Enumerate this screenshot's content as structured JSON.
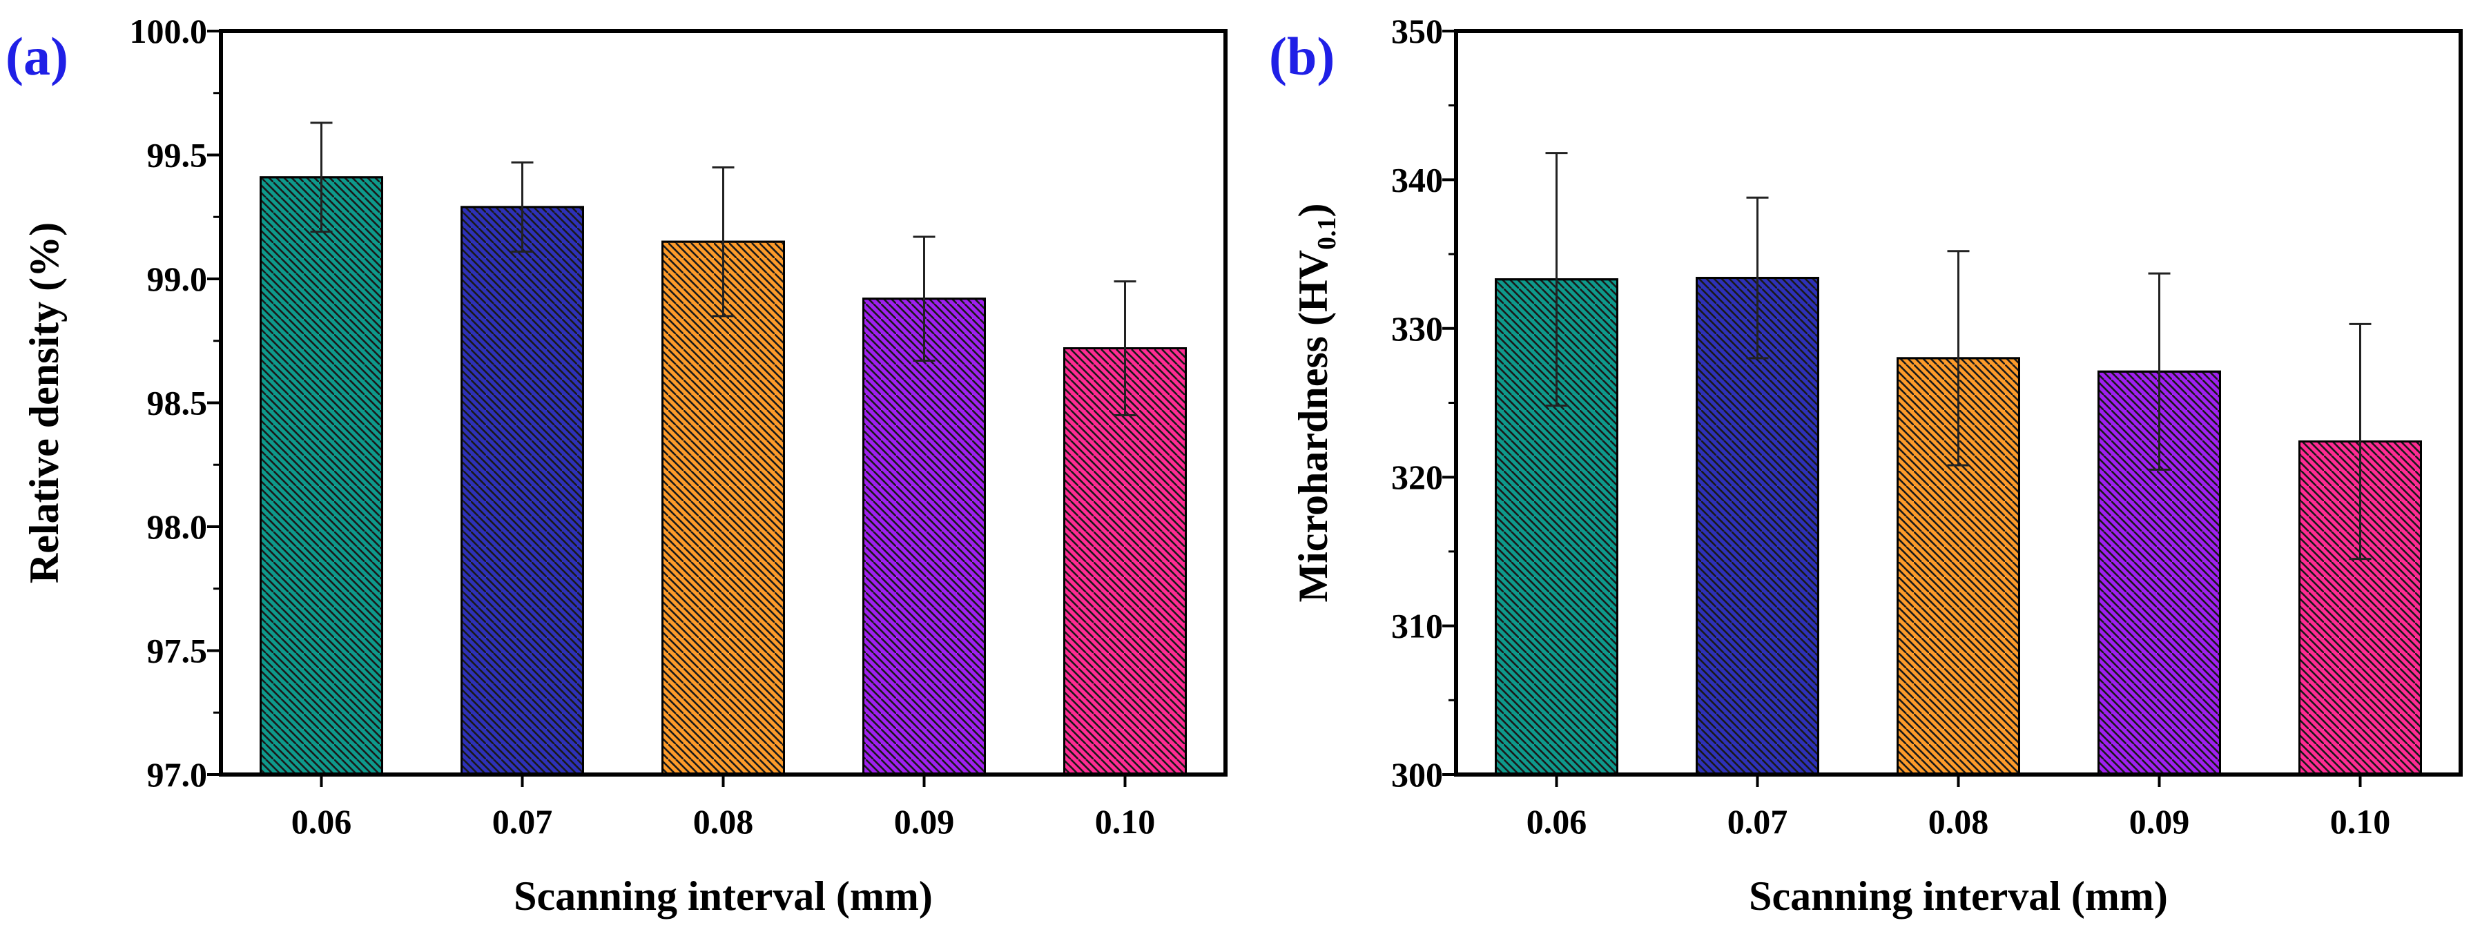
{
  "figure": {
    "panels": [
      "(a)",
      "(b)"
    ],
    "panel_label_color": "#1f1fe6"
  },
  "chart_data": [
    {
      "type": "bar",
      "panel_label": "(a)",
      "title": "",
      "xlabel": "Scanning interval (mm)",
      "ylabel": "Relative density (%)",
      "categories": [
        "0.06",
        "0.07",
        "0.08",
        "0.09",
        "0.10"
      ],
      "values": [
        99.41,
        99.29,
        99.15,
        98.92,
        98.72
      ],
      "errors": [
        0.22,
        0.18,
        0.3,
        0.25,
        0.27
      ],
      "colors": [
        "#0e9a8c",
        "#2e31b8",
        "#fd9b2a",
        "#a020f0",
        "#ff2b93"
      ],
      "hatch": "diagonal",
      "ylim": [
        97.0,
        100.0
      ],
      "yticks": [
        97.0,
        97.5,
        98.0,
        98.5,
        99.0,
        99.5,
        100.0
      ],
      "ytick_labels": [
        "97.0",
        "97.5",
        "98.0",
        "98.5",
        "99.0",
        "99.5",
        "100.0"
      ],
      "grid": false
    },
    {
      "type": "bar",
      "panel_label": "(b)",
      "title": "",
      "xlabel": "Scanning interval (mm)",
      "ylabel": "Microhardness (HV",
      "ylabel_subscript": "0.1",
      "ylabel_suffix": ")",
      "categories": [
        "0.06",
        "0.07",
        "0.08",
        "0.09",
        "0.10"
      ],
      "values": [
        333.3,
        333.4,
        328.0,
        327.1,
        322.4
      ],
      "errors": [
        8.5,
        5.4,
        7.2,
        6.6,
        7.9
      ],
      "colors": [
        "#0e9a8c",
        "#2e31b8",
        "#fd9b2a",
        "#a020f0",
        "#ff2b93"
      ],
      "hatch": "diagonal",
      "ylim": [
        300,
        350
      ],
      "yticks": [
        300,
        310,
        320,
        330,
        340,
        350
      ],
      "ytick_labels": [
        "300",
        "310",
        "320",
        "330",
        "340",
        "350"
      ],
      "grid": false
    }
  ]
}
